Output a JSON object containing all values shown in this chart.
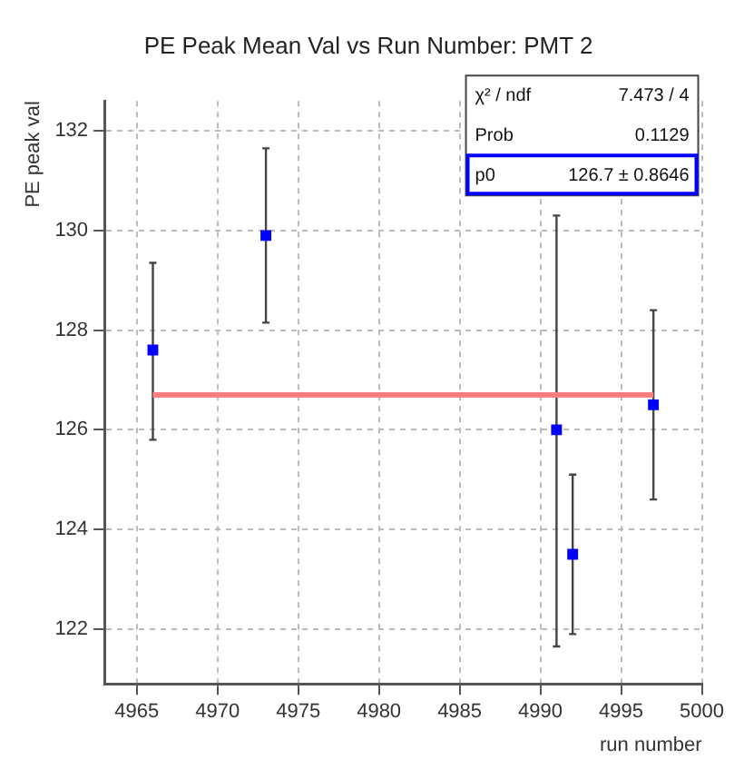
{
  "chart_data": {
    "type": "scatter",
    "title": "PE Peak Mean Val vs Run Number: PMT 2",
    "xlabel": "run number",
    "ylabel": "PE peak val",
    "x": [
      4966,
      4973,
      4991,
      4992,
      4997
    ],
    "series": [
      {
        "color": "#0000ff",
        "values": [
          127.6,
          129.9,
          126.0,
          123.5,
          126.5
        ],
        "errors": [
          [
            125.8,
            129.35
          ],
          [
            128.15,
            131.65
          ],
          [
            121.65,
            130.3
          ],
          [
            121.9,
            125.1
          ],
          [
            124.6,
            128.4
          ]
        ]
      },
      {
        "type": "line",
        "color": "#ff7f7f",
        "x": [
          4966,
          4997
        ],
        "values": [
          126.7,
          126.7
        ],
        "marker": "none"
      }
    ],
    "xlim": [
      4963,
      5000
    ],
    "xticks": [
      4965,
      4970,
      4975,
      4980,
      4985,
      4990,
      4995,
      5000
    ],
    "ylim": [
      120.9,
      132.6
    ],
    "yticks": [
      122,
      124,
      126,
      128,
      130,
      132
    ],
    "grid": true,
    "marker": "square",
    "line_style": "solid",
    "legend": false,
    "annotations": [
      "χ² / ndf",
      "7.473 / 4",
      "Prob",
      "0.1129",
      "p0",
      "126.7 ± 0.8646"
    ]
  }
}
